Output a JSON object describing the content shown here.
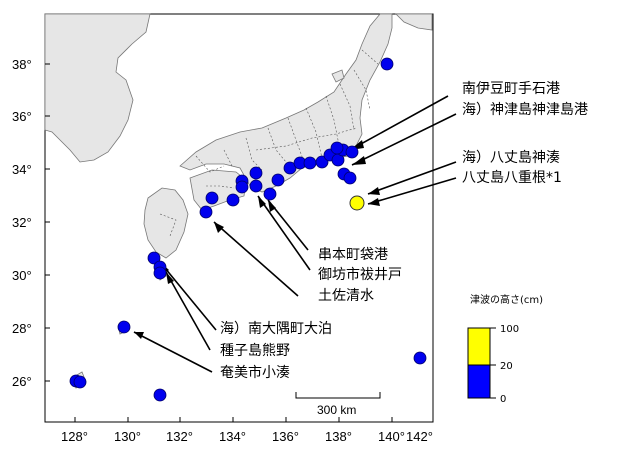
{
  "map": {
    "x_ticks": [
      "128°",
      "130°",
      "132°",
      "134°",
      "136°",
      "138°",
      "140°",
      "142°"
    ],
    "y_ticks": [
      "38°",
      "36°",
      "34°",
      "32°",
      "30°",
      "28°",
      "26°"
    ],
    "scale_bar": "300 km",
    "legend": {
      "title": "津波の高さ(cm)",
      "labels": [
        "100",
        "20",
        "0"
      ],
      "colors": {
        "high": "#ffff00",
        "low": "#0000ff"
      }
    },
    "labels": {
      "minamiizu": "南伊豆町手石港",
      "kozushima": "海）神津島神津島港",
      "hachijo_kaminato": "海）八丈島神湊",
      "hachijo_yaene": "八丈島八重根*1",
      "kushimoto": "串本町袋港",
      "gobo": "御坊市祓井戸",
      "tosashimizu": "土佐清水",
      "minamiosumi": "海）南大隅町大泊",
      "tanegashima": "種子島熊野",
      "amami": "奄美市小湊"
    }
  }
}
